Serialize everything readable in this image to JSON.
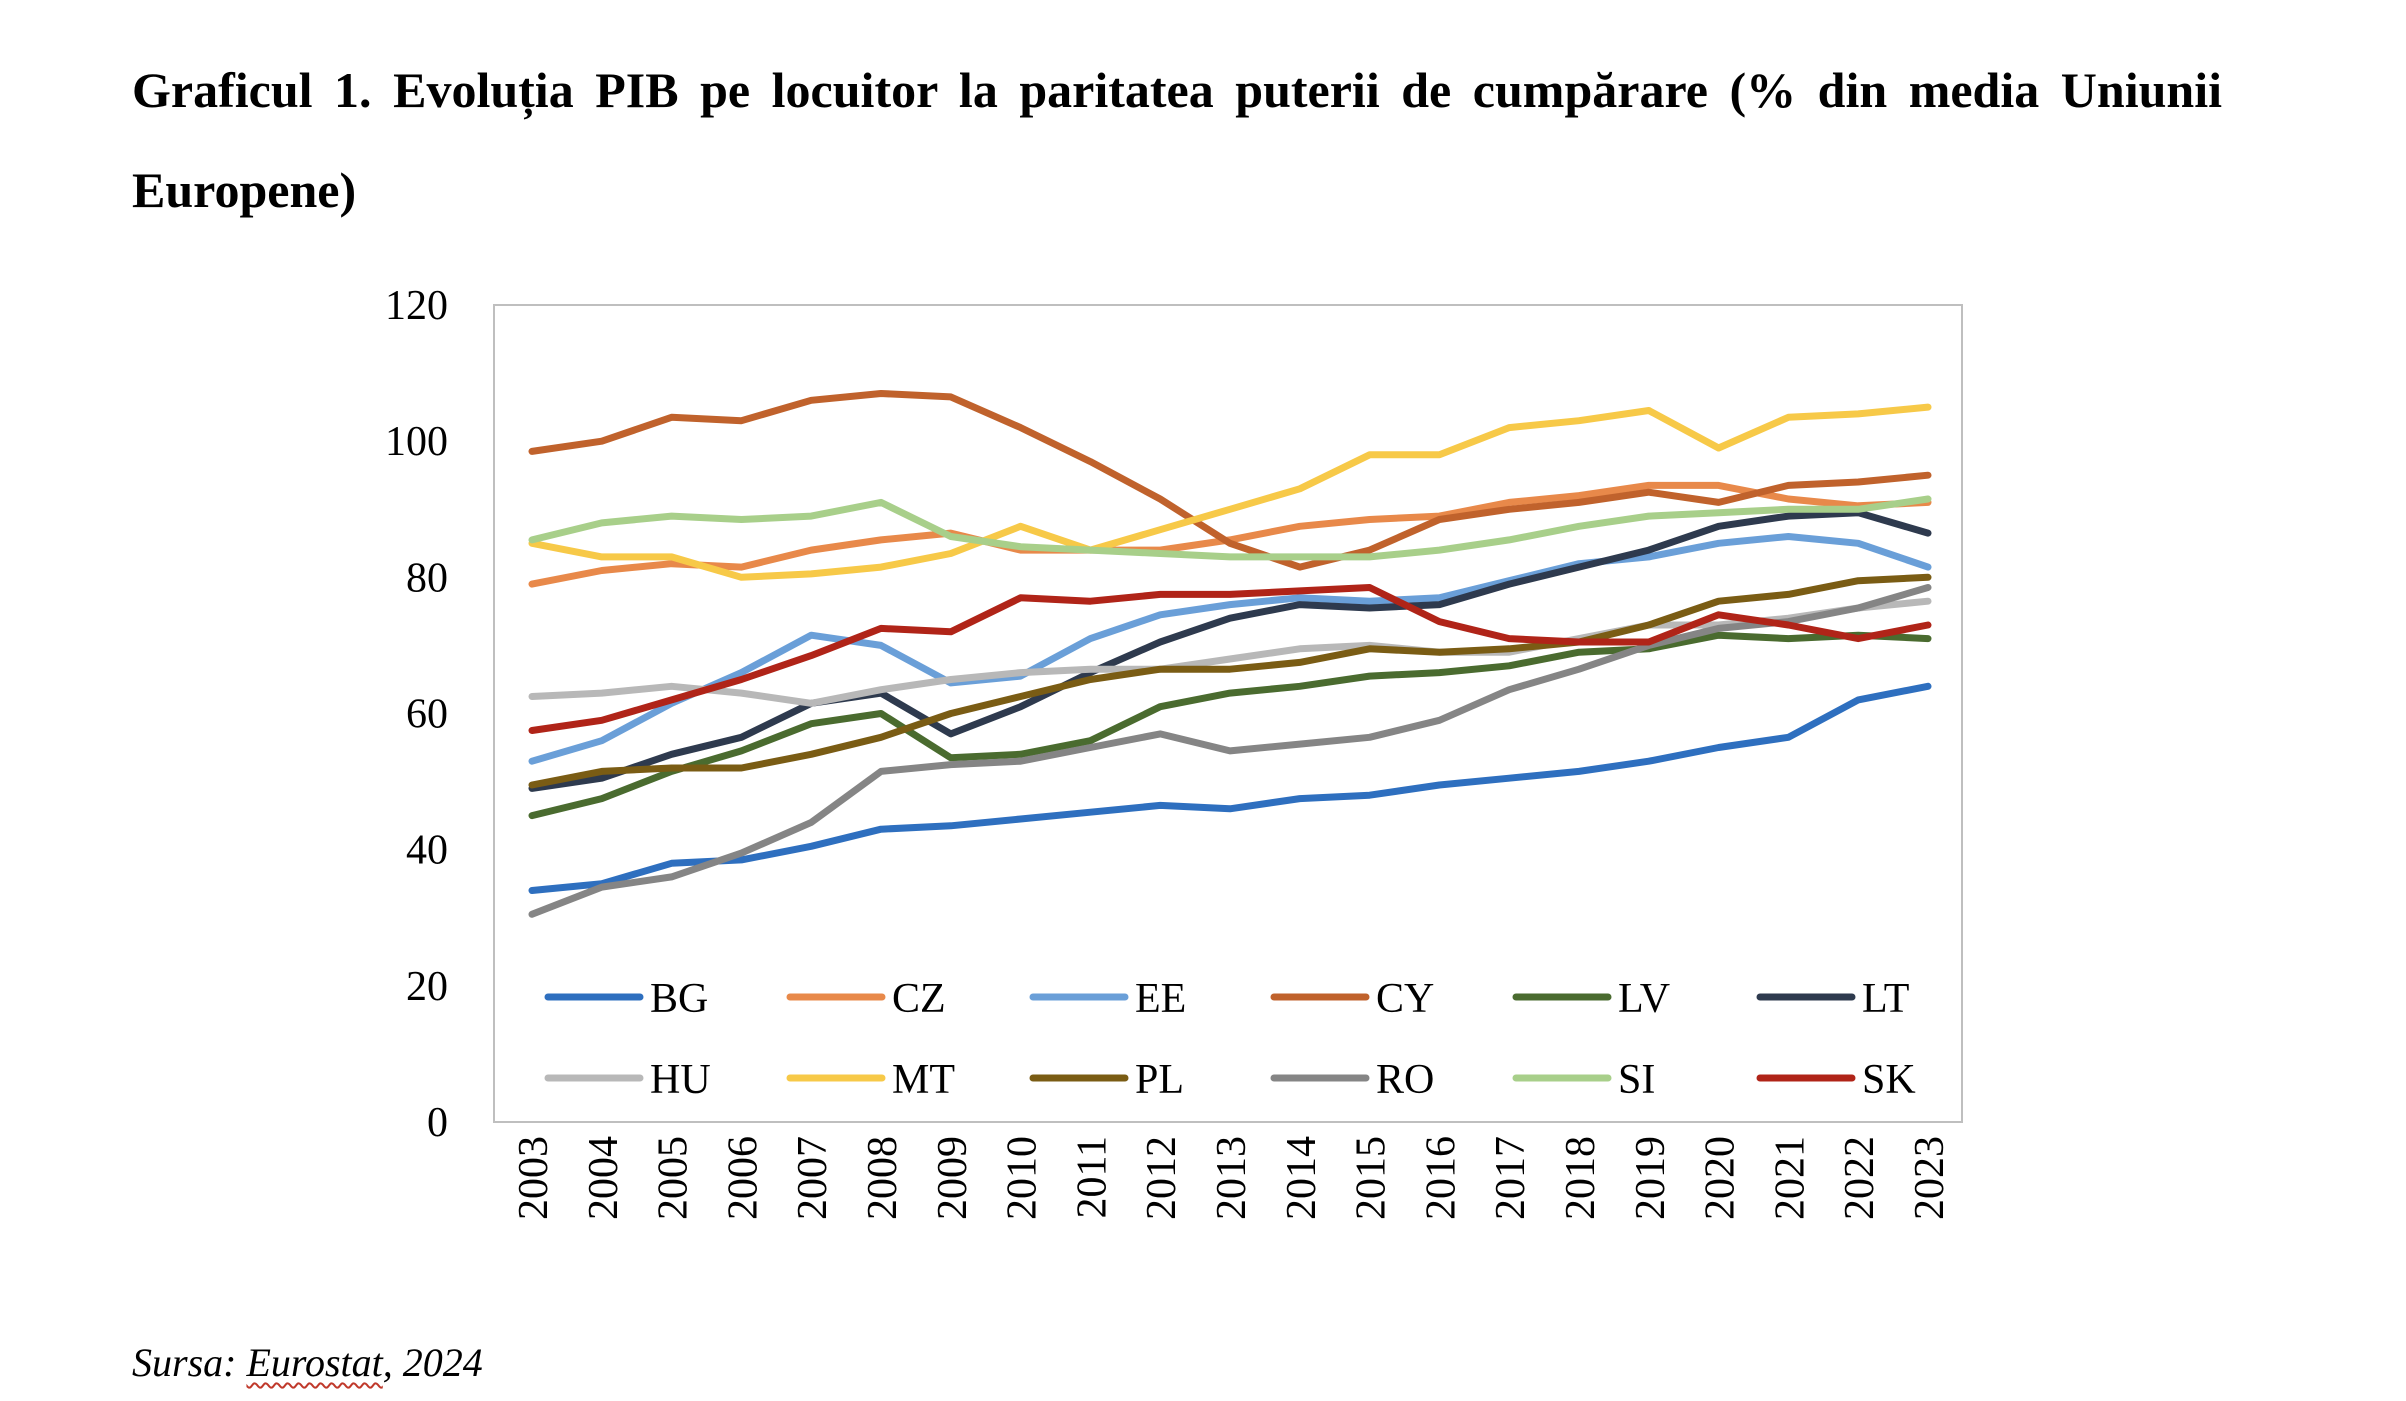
{
  "figure": {
    "title": "Graficul 1. Evoluția PIB pe locuitor la paritatea puterii de cumpărare (% din media Uniunii Europene)"
  },
  "source": {
    "label": "Sursa:",
    "text": "Eurostat",
    "year": ", 2024"
  },
  "chart_data": {
    "type": "line",
    "title": "",
    "xlabel": "",
    "ylabel": "",
    "ylim": [
      0,
      120
    ],
    "yticks": [
      0,
      20,
      40,
      60,
      80,
      100,
      120
    ],
    "grid": false,
    "legend_position": "bottom-inside",
    "x": [
      "2003",
      "2004",
      "2005",
      "2006",
      "2007",
      "2008",
      "2009",
      "2010",
      "2011",
      "2012",
      "2013",
      "2014",
      "2015",
      "2016",
      "2017",
      "2018",
      "2019",
      "2020",
      "2021",
      "2022",
      "2023"
    ],
    "series": [
      {
        "name": "BG",
        "color": "#2e6fbf",
        "values": [
          34,
          35,
          38,
          38.5,
          40.5,
          43,
          43.5,
          44.5,
          45.5,
          46.5,
          46,
          47.5,
          48,
          49.5,
          50.5,
          51.5,
          53,
          55,
          56.5,
          62,
          64
        ]
      },
      {
        "name": "CZ",
        "color": "#e8894a",
        "values": [
          79,
          81,
          82,
          81.5,
          84,
          85.5,
          86.5,
          84,
          84,
          84,
          85.5,
          87.5,
          88.5,
          89,
          91,
          92,
          93.5,
          93.5,
          91.5,
          90.5,
          91
        ]
      },
      {
        "name": "EE",
        "color": "#6a9fd8",
        "values": [
          53,
          56,
          61.5,
          66,
          71.5,
          70,
          64.5,
          65.5,
          71,
          74.5,
          76,
          77,
          76.5,
          77,
          79.5,
          82,
          83,
          85,
          86,
          85,
          81.5
        ]
      },
      {
        "name": "CY",
        "color": "#c0622c",
        "values": [
          98.5,
          100,
          103.5,
          103,
          106,
          107,
          106.5,
          102,
          97,
          91.5,
          85,
          81.5,
          84,
          88.5,
          90,
          91,
          92.5,
          91,
          93.5,
          94,
          95
        ]
      },
      {
        "name": "LV",
        "color": "#4a6b2f",
        "values": [
          45,
          47.5,
          51.5,
          54.5,
          58.5,
          60,
          53.5,
          54,
          56,
          61,
          63,
          64,
          65.5,
          66,
          67,
          69,
          69.5,
          71.5,
          71,
          71.5,
          71
        ]
      },
      {
        "name": "LT",
        "color": "#2e3a4e",
        "values": [
          49,
          50.5,
          54,
          56.5,
          61.5,
          63,
          57,
          61,
          66,
          70.5,
          74,
          76,
          75.5,
          76,
          79,
          81.5,
          84,
          87.5,
          89,
          89.5,
          86.5
        ]
      },
      {
        "name": "HU",
        "color": "#b8b8b8",
        "values": [
          62.5,
          63,
          64,
          63,
          61.5,
          63.5,
          65,
          66,
          66.5,
          66.5,
          68,
          69.5,
          70,
          69,
          69,
          71,
          73,
          73,
          74,
          75.5,
          76.5
        ]
      },
      {
        "name": "MT",
        "color": "#f7c948",
        "values": [
          85,
          83,
          83,
          80,
          80.5,
          81.5,
          83.5,
          87.5,
          84,
          87,
          90,
          93,
          98,
          98,
          102,
          103,
          104.5,
          99,
          103.5,
          104,
          105
        ]
      },
      {
        "name": "PL",
        "color": "#7a5c14",
        "values": [
          49.5,
          51.5,
          52,
          52,
          54,
          56.5,
          60,
          62.5,
          65,
          66.5,
          66.5,
          67.5,
          69.5,
          69,
          69.5,
          70.5,
          73,
          76.5,
          77.5,
          79.5,
          80
        ]
      },
      {
        "name": "RO",
        "color": "#858585",
        "values": [
          30.5,
          34.5,
          36,
          39.5,
          44,
          51.5,
          52.5,
          53,
          55,
          57,
          54.5,
          55.5,
          56.5,
          59,
          63.5,
          66.5,
          70,
          72.5,
          73.5,
          75.5,
          78.5
        ]
      },
      {
        "name": "SI",
        "color": "#a8cf8a",
        "values": [
          85.5,
          88,
          89,
          88.5,
          89,
          91,
          86,
          84.5,
          84,
          83.5,
          83,
          83,
          83,
          84,
          85.5,
          87.5,
          89,
          89.5,
          90,
          90,
          91.5
        ]
      },
      {
        "name": "SK",
        "color": "#b02418",
        "values": [
          57.5,
          59,
          62,
          65,
          68.5,
          72.5,
          72,
          77,
          76.5,
          77.5,
          77.5,
          78,
          78.5,
          73.5,
          71,
          70.5,
          70.5,
          74.5,
          73,
          71,
          73
        ]
      }
    ]
  }
}
